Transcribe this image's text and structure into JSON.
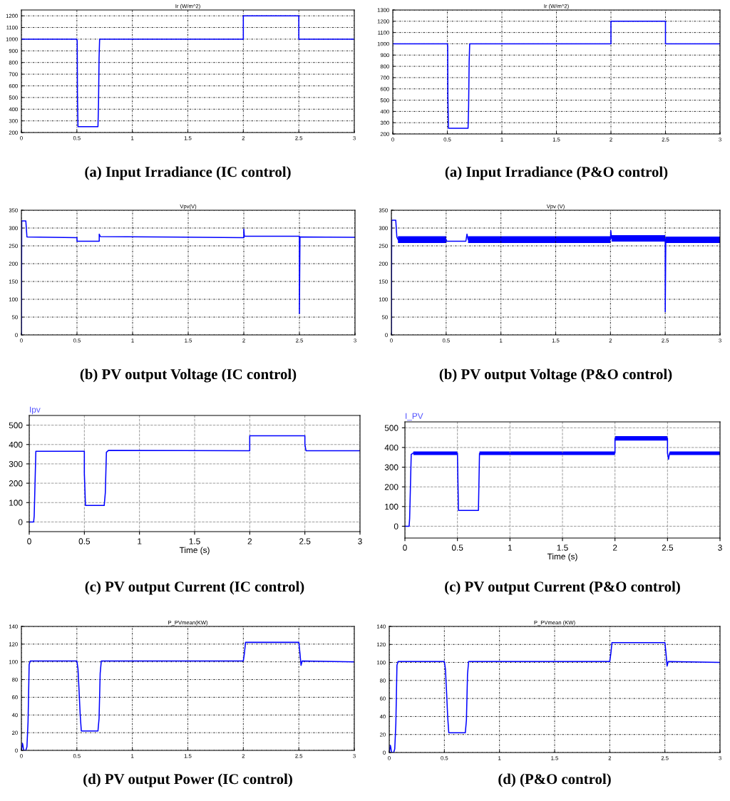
{
  "chart_data": [
    {
      "type": "line",
      "title": "Ir (W/m^2)",
      "annotations": [
        "(a) Input Irradiance (IC control)"
      ],
      "xlim": [
        0,
        3
      ],
      "ylim": [
        200,
        1250
      ],
      "xticks": [
        0,
        0.5,
        1,
        1.5,
        2,
        2.5,
        3
      ],
      "yticks": [
        200,
        300,
        400,
        500,
        600,
        700,
        800,
        900,
        1000,
        1100,
        1200
      ],
      "grid": true,
      "series": [
        {
          "color": "#0000ff",
          "x": [
            0,
            0.5,
            0.503,
            0.505,
            0.51,
            0.69,
            0.695,
            0.7,
            0.705,
            2,
            2,
            2.5,
            2.5,
            3
          ],
          "values": [
            1000,
            1000,
            980,
            540,
            250,
            250,
            440,
            840,
            1000,
            1000,
            1200,
            1200,
            1000,
            1000
          ]
        }
      ]
    },
    {
      "type": "line",
      "title": "Ir (W/m^2)",
      "annotations": [
        "(a) Input Irradiance (P&O control)"
      ],
      "xlim": [
        0,
        3
      ],
      "ylim": [
        200,
        1300
      ],
      "xticks": [
        0,
        0.5,
        1,
        1.5,
        2,
        2.5,
        3
      ],
      "yticks": [
        200,
        300,
        400,
        500,
        600,
        700,
        800,
        900,
        1000,
        1100,
        1200,
        1300
      ],
      "grid": true,
      "series": [
        {
          "color": "#0000ff",
          "x": [
            0,
            0.5,
            0.503,
            0.505,
            0.51,
            0.69,
            0.695,
            0.7,
            0.705,
            2,
            2,
            2.5,
            2.5,
            3
          ],
          "values": [
            1000,
            1000,
            980,
            530,
            250,
            250,
            440,
            840,
            1000,
            1000,
            1200,
            1200,
            1000,
            1000
          ]
        }
      ]
    },
    {
      "type": "line",
      "title": "Vpv(V)",
      "annotations": [
        "(b) PV output Voltage (IC control)"
      ],
      "xlim": [
        0,
        3
      ],
      "ylim": [
        0,
        350
      ],
      "xticks": [
        0,
        0.5,
        1,
        1.5,
        2,
        2.5,
        3
      ],
      "yticks": [
        0,
        50,
        100,
        150,
        200,
        250,
        300,
        350
      ],
      "grid": true,
      "series": [
        {
          "color": "#0000ff",
          "x": [
            0,
            0.003,
            0.04,
            0.05,
            0.5,
            0.5,
            0.7,
            0.7,
            0.71,
            1.2,
            2,
            2,
            2.005,
            2.5,
            2.5,
            2.505,
            3
          ],
          "values": [
            0,
            320,
            320,
            275,
            273,
            263,
            263,
            283,
            276,
            275,
            273,
            297,
            277,
            277,
            60,
            275,
            274
          ]
        }
      ]
    },
    {
      "type": "line",
      "title": "Vpv (V)",
      "annotations": [
        "(b) PV output Voltage (P&O control)"
      ],
      "xlim": [
        0,
        3
      ],
      "ylim": [
        0,
        350
      ],
      "xticks": [
        0,
        0.5,
        1,
        1.5,
        2,
        2.5,
        3
      ],
      "yticks": [
        0,
        50,
        100,
        150,
        200,
        250,
        300,
        350
      ],
      "grid": true,
      "series": [
        {
          "color": "#0000ff",
          "x": [
            0,
            0.003,
            0.04,
            0.05,
            0.06,
            0.5,
            0.505,
            0.68,
            0.69,
            0.7,
            2,
            2.003,
            2.01,
            2.5,
            2.5,
            2.505,
            3
          ],
          "values": [
            0,
            322,
            322,
            275,
            268,
            268,
            263,
            263,
            283,
            268,
            268,
            293,
            271,
            271,
            65,
            267,
            267
          ],
          "lower": [
            null,
            null,
            null,
            null,
            258,
            258,
            null,
            null,
            null,
            258,
            258,
            null,
            262,
            262,
            null,
            258,
            258
          ],
          "upper": [
            null,
            null,
            null,
            null,
            277,
            277,
            null,
            null,
            null,
            277,
            277,
            null,
            280,
            280,
            null,
            276,
            276
          ]
        }
      ]
    },
    {
      "type": "line",
      "title": "Ipv",
      "xlabel": "Time (s)",
      "annotations": [
        "(c) PV output Current (IC control)"
      ],
      "xlim": [
        0,
        3
      ],
      "ylim": [
        -50,
        550
      ],
      "xticks": [
        0,
        0.5,
        1,
        1.5,
        2,
        2.5,
        3
      ],
      "yticks": [
        0,
        100,
        200,
        300,
        400,
        500
      ],
      "grid": true,
      "series": [
        {
          "color": "#0000ff",
          "x": [
            0,
            0.04,
            0.045,
            0.06,
            0.5,
            0.5,
            0.51,
            0.68,
            0.69,
            0.7,
            0.72,
            2,
            2,
            2.5,
            2.5,
            2.51,
            3
          ],
          "values": [
            0,
            0,
            30,
            365,
            365,
            250,
            85,
            85,
            150,
            360,
            370,
            368,
            445,
            445,
            400,
            368,
            368
          ]
        }
      ]
    },
    {
      "type": "line",
      "title": "I_PV",
      "xlabel": "Time (s)",
      "annotations": [
        "(c) PV output Current (P&O control)"
      ],
      "xlim": [
        0,
        3
      ],
      "ylim": [
        -60,
        530
      ],
      "xticks": [
        0,
        0.5,
        1,
        1.5,
        2,
        2.5,
        3
      ],
      "yticks": [
        0,
        100,
        200,
        300,
        400,
        500
      ],
      "grid": true,
      "series": [
        {
          "color": "#0000ff",
          "x": [
            0,
            0.04,
            0.045,
            0.06,
            0.08,
            0.5,
            0.5,
            0.505,
            0.51,
            0.7,
            0.71,
            2,
            2,
            2.5,
            2.5,
            2.51,
            2.52,
            3
          ],
          "values": [
            0,
            0,
            40,
            365,
            372,
            372,
            370,
            220,
            80,
            80,
            370,
            372,
            447,
            447,
            370,
            340,
            372,
            372
          ],
          "lower": [
            null,
            null,
            null,
            null,
            362,
            362,
            null,
            null,
            null,
            null,
            362,
            362,
            435,
            435,
            null,
            null,
            362,
            362
          ],
          "upper": [
            null,
            null,
            null,
            null,
            380,
            380,
            null,
            null,
            null,
            null,
            380,
            380,
            458,
            458,
            null,
            null,
            380,
            380
          ]
        }
      ]
    },
    {
      "type": "line",
      "title": "P_PVmean(KW)",
      "annotations": [
        "(d) PV output Power (IC control)"
      ],
      "xlim": [
        0,
        3
      ],
      "ylim": [
        0,
        140
      ],
      "xticks": [
        0,
        0.5,
        1,
        1.5,
        2,
        2.5,
        3
      ],
      "yticks": [
        0,
        20,
        40,
        60,
        80,
        100,
        120,
        140
      ],
      "grid": true,
      "series": [
        {
          "color": "#0000ff",
          "x": [
            0,
            0.01,
            0.015,
            0.02,
            0.04,
            0.05,
            0.06,
            0.065,
            0.07,
            0.08,
            0.5,
            0.51,
            0.52,
            0.53,
            0.54,
            0.69,
            0.7,
            0.71,
            0.72,
            2,
            2.01,
            2.02,
            2.5,
            2.51,
            2.52,
            2.53,
            3
          ],
          "values": [
            0,
            8,
            5,
            0,
            0,
            4,
            32,
            64,
            97,
            101,
            101,
            92,
            67,
            40,
            22,
            22,
            36,
            87,
            101,
            101,
            110,
            122,
            122,
            110,
            96,
            101,
            100
          ]
        }
      ]
    },
    {
      "type": "line",
      "title": "P_PVmean (KW)",
      "annotations": [
        "(d) (P&O control)"
      ],
      "xlim": [
        0,
        3
      ],
      "ylim": [
        0,
        140
      ],
      "xticks": [
        0,
        0.5,
        1,
        1.5,
        2,
        2.5,
        3
      ],
      "yticks": [
        0,
        20,
        40,
        60,
        80,
        100,
        120,
        140
      ],
      "grid": true,
      "series": [
        {
          "color": "#0000ff",
          "x": [
            0,
            0.01,
            0.015,
            0.02,
            0.04,
            0.05,
            0.06,
            0.065,
            0.07,
            0.08,
            0.5,
            0.51,
            0.52,
            0.53,
            0.54,
            0.69,
            0.7,
            0.71,
            0.72,
            2,
            2.01,
            2.02,
            2.5,
            2.51,
            2.52,
            2.53,
            3
          ],
          "values": [
            0,
            8,
            5,
            0,
            0,
            4,
            32,
            64,
            97,
            101,
            101,
            92,
            67,
            40,
            22,
            22,
            36,
            87,
            101,
            101,
            110,
            122,
            122,
            110,
            96,
            101,
            100
          ]
        }
      ]
    }
  ]
}
